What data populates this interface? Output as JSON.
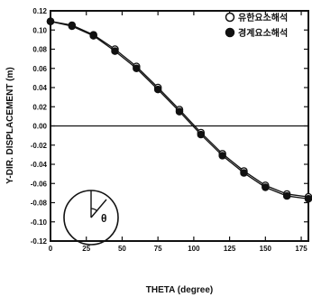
{
  "chart_data": {
    "type": "line",
    "xlabel": "THETA (degree)",
    "ylabel": "Y-DIR. DISPLACEMENT (m)",
    "xlim": [
      0,
      180
    ],
    "ylim": [
      -0.12,
      0.12
    ],
    "x_ticks": [
      "0",
      "25",
      "50",
      "75",
      "100",
      "125",
      "150",
      "175"
    ],
    "y_ticks": [
      "0.12",
      "0.10",
      "0.08",
      "0.06",
      "0.04",
      "0.02",
      "0.00",
      "-0.02",
      "-0.04",
      "-0.06",
      "-0.08",
      "-0.10",
      "-0.12"
    ],
    "zero_line": true,
    "legend_position": "top-right",
    "series": [
      {
        "name": "유한요소해석",
        "marker": "open-circle",
        "x": [
          0,
          15,
          30,
          45,
          60,
          75,
          90,
          105,
          120,
          135,
          150,
          165,
          180
        ],
        "values": [
          0.109,
          0.105,
          0.095,
          0.08,
          0.062,
          0.04,
          0.017,
          -0.007,
          -0.029,
          -0.047,
          -0.062,
          -0.071,
          -0.074
        ]
      },
      {
        "name": "경계요소해석",
        "marker": "filled-circle",
        "x": [
          0,
          15,
          30,
          45,
          60,
          75,
          90,
          105,
          120,
          135,
          150,
          165,
          180
        ],
        "values": [
          0.109,
          0.104,
          0.094,
          0.078,
          0.06,
          0.038,
          0.015,
          -0.009,
          -0.031,
          -0.049,
          -0.064,
          -0.073,
          -0.076
        ]
      }
    ],
    "inset_symbol": "θ",
    "colors": {
      "line": "#111111",
      "background": "#ffffff"
    }
  }
}
